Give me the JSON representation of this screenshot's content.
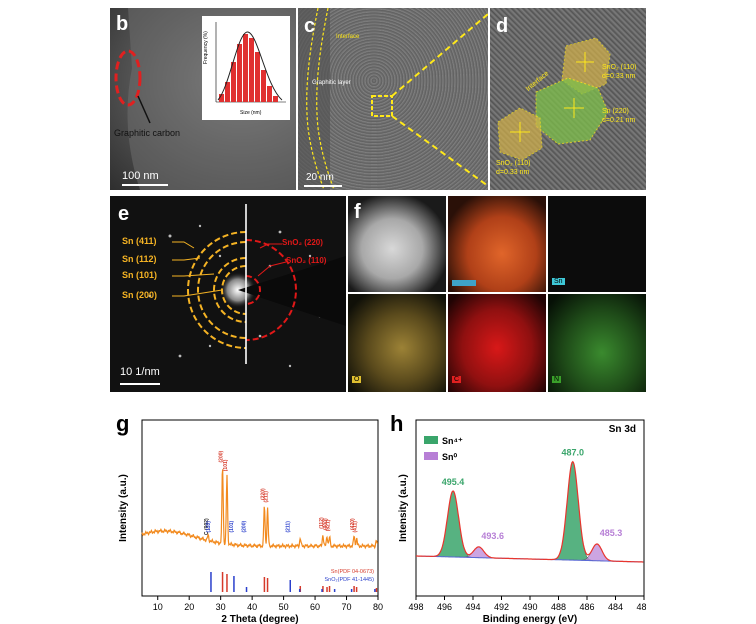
{
  "panels": {
    "b": {
      "label": "b",
      "scale": "100 nm",
      "annotation": "Graphitic carbon",
      "inset": {
        "xlabel": "Size (nm)",
        "ylabel": "Frequency (%)"
      }
    },
    "c": {
      "label": "c",
      "interface": "Interface",
      "layer": "Graphitic layer",
      "scale": "20 nm"
    },
    "d": {
      "label": "d",
      "interface": "Interface",
      "sno2_top": [
        "SnO₂ (110)",
        "d=0.33 nm"
      ],
      "sn": [
        "Sn (220)",
        "d=0.21 nm"
      ],
      "sno2_left": [
        "SnO₂ (110)",
        "d=0.33 nm"
      ]
    },
    "e": {
      "label": "e",
      "scale": "10 1/nm",
      "left_rings": [
        "Sn (411)",
        "Sn (112)",
        "Sn (101)",
        "Sn (200)"
      ],
      "right_rings": [
        "SnO₂ (220)",
        "SnO₂ (110)"
      ]
    },
    "f": {
      "label": "f",
      "maps": [
        "Sn",
        "O",
        "C",
        "N"
      ]
    },
    "g": {
      "label": "g"
    },
    "h": {
      "label": "h"
    }
  },
  "colors": {
    "sn_ring": "#f5b324",
    "sno2_ring": "#e01818",
    "xrd_line": "#f28a1e",
    "sn_ref": "#d63a2a",
    "sno2_ref": "#2a3fcc",
    "sn4": "#3aa56b",
    "sn0": "#b77fd6",
    "fit": "#e8352e"
  },
  "chart_data": [
    {
      "type": "line",
      "panel": "g",
      "title": "",
      "xlabel": "2 Theta (degree)",
      "ylabel": "Intensity (a.u.)",
      "xlim": [
        5,
        80
      ],
      "xticks": [
        10,
        20,
        30,
        40,
        50,
        60,
        70,
        80
      ],
      "series": [
        {
          "name": "XRD pattern",
          "color": "#f28a1e",
          "peaks": [
            [
              26.0,
              4
            ],
            [
              30.6,
              62
            ],
            [
              32.0,
              55
            ],
            [
              43.9,
              32
            ],
            [
              44.9,
              30
            ],
            [
              55.3,
              6
            ],
            [
              62.5,
              9
            ],
            [
              63.8,
              8
            ],
            [
              64.6,
              7
            ],
            [
              72.4,
              8
            ],
            [
              73.2,
              6
            ],
            [
              79.5,
              4
            ]
          ]
        }
      ],
      "peak_labels": [
        {
          "x": 26.0,
          "text": "C (002)",
          "color": "#222222"
        },
        {
          "x": 26.6,
          "text": "(110)",
          "color": "#2a3fcc"
        },
        {
          "x": 30.6,
          "text": "(200)",
          "color": "#d63a2a"
        },
        {
          "x": 32.0,
          "text": "(101)",
          "color": "#d63a2a"
        },
        {
          "x": 33.9,
          "text": "(101)",
          "color": "#2a3fcc"
        },
        {
          "x": 37.9,
          "text": "(200)",
          "color": "#2a3fcc"
        },
        {
          "x": 43.9,
          "text": "(220)",
          "color": "#d63a2a"
        },
        {
          "x": 44.9,
          "text": "(211)",
          "color": "#d63a2a"
        },
        {
          "x": 51.8,
          "text": "(211)",
          "color": "#2a3fcc"
        },
        {
          "x": 62.5,
          "text": "(112)",
          "color": "#d63a2a"
        },
        {
          "x": 63.8,
          "text": "(400)",
          "color": "#d63a2a"
        },
        {
          "x": 64.6,
          "text": "(321)",
          "color": "#d63a2a"
        },
        {
          "x": 72.4,
          "text": "(420)",
          "color": "#d63a2a"
        },
        {
          "x": 73.2,
          "text": "(411)",
          "color": "#d63a2a"
        }
      ],
      "references": [
        {
          "name": "Sn(PDF 04-0673)",
          "color": "#d63a2a",
          "positions": [
            30.6,
            32.0,
            43.9,
            44.9,
            55.3,
            62.5,
            63.8,
            64.6,
            72.4,
            73.2,
            79.5
          ],
          "heights": [
            1.0,
            0.9,
            0.75,
            0.7,
            0.3,
            0.3,
            0.25,
            0.3,
            0.3,
            0.25,
            0.2
          ]
        },
        {
          "name": "SnO₂(PDF 41-1445)",
          "color": "#2a3fcc",
          "positions": [
            26.6,
            33.9,
            37.9,
            51.8,
            54.8,
            61.9,
            65.9,
            71.3,
            78.7
          ],
          "heights": [
            1.0,
            0.8,
            0.25,
            0.6,
            0.15,
            0.15,
            0.15,
            0.15,
            0.15
          ]
        }
      ]
    },
    {
      "type": "area",
      "panel": "h",
      "title": "Sn 3d",
      "xlabel": "Binding energy (eV)",
      "ylabel": "Intensity (a.u.)",
      "xlim": [
        498,
        482
      ],
      "xticks": [
        498,
        496,
        494,
        492,
        490,
        488,
        486,
        484,
        482
      ],
      "series": [
        {
          "name": "Sn⁴⁺",
          "color": "#3aa56b",
          "peaks": [
            {
              "center": 495.4,
              "height": 0.55,
              "label": "495.4"
            },
            {
              "center": 487.0,
              "height": 0.82,
              "label": "487.0"
            }
          ]
        },
        {
          "name": "Sn⁰",
          "color": "#b77fd6",
          "peaks": [
            {
              "center": 493.6,
              "height": 0.09,
              "label": "493.6"
            },
            {
              "center": 485.3,
              "height": 0.14,
              "label": "485.3"
            }
          ]
        }
      ]
    }
  ]
}
